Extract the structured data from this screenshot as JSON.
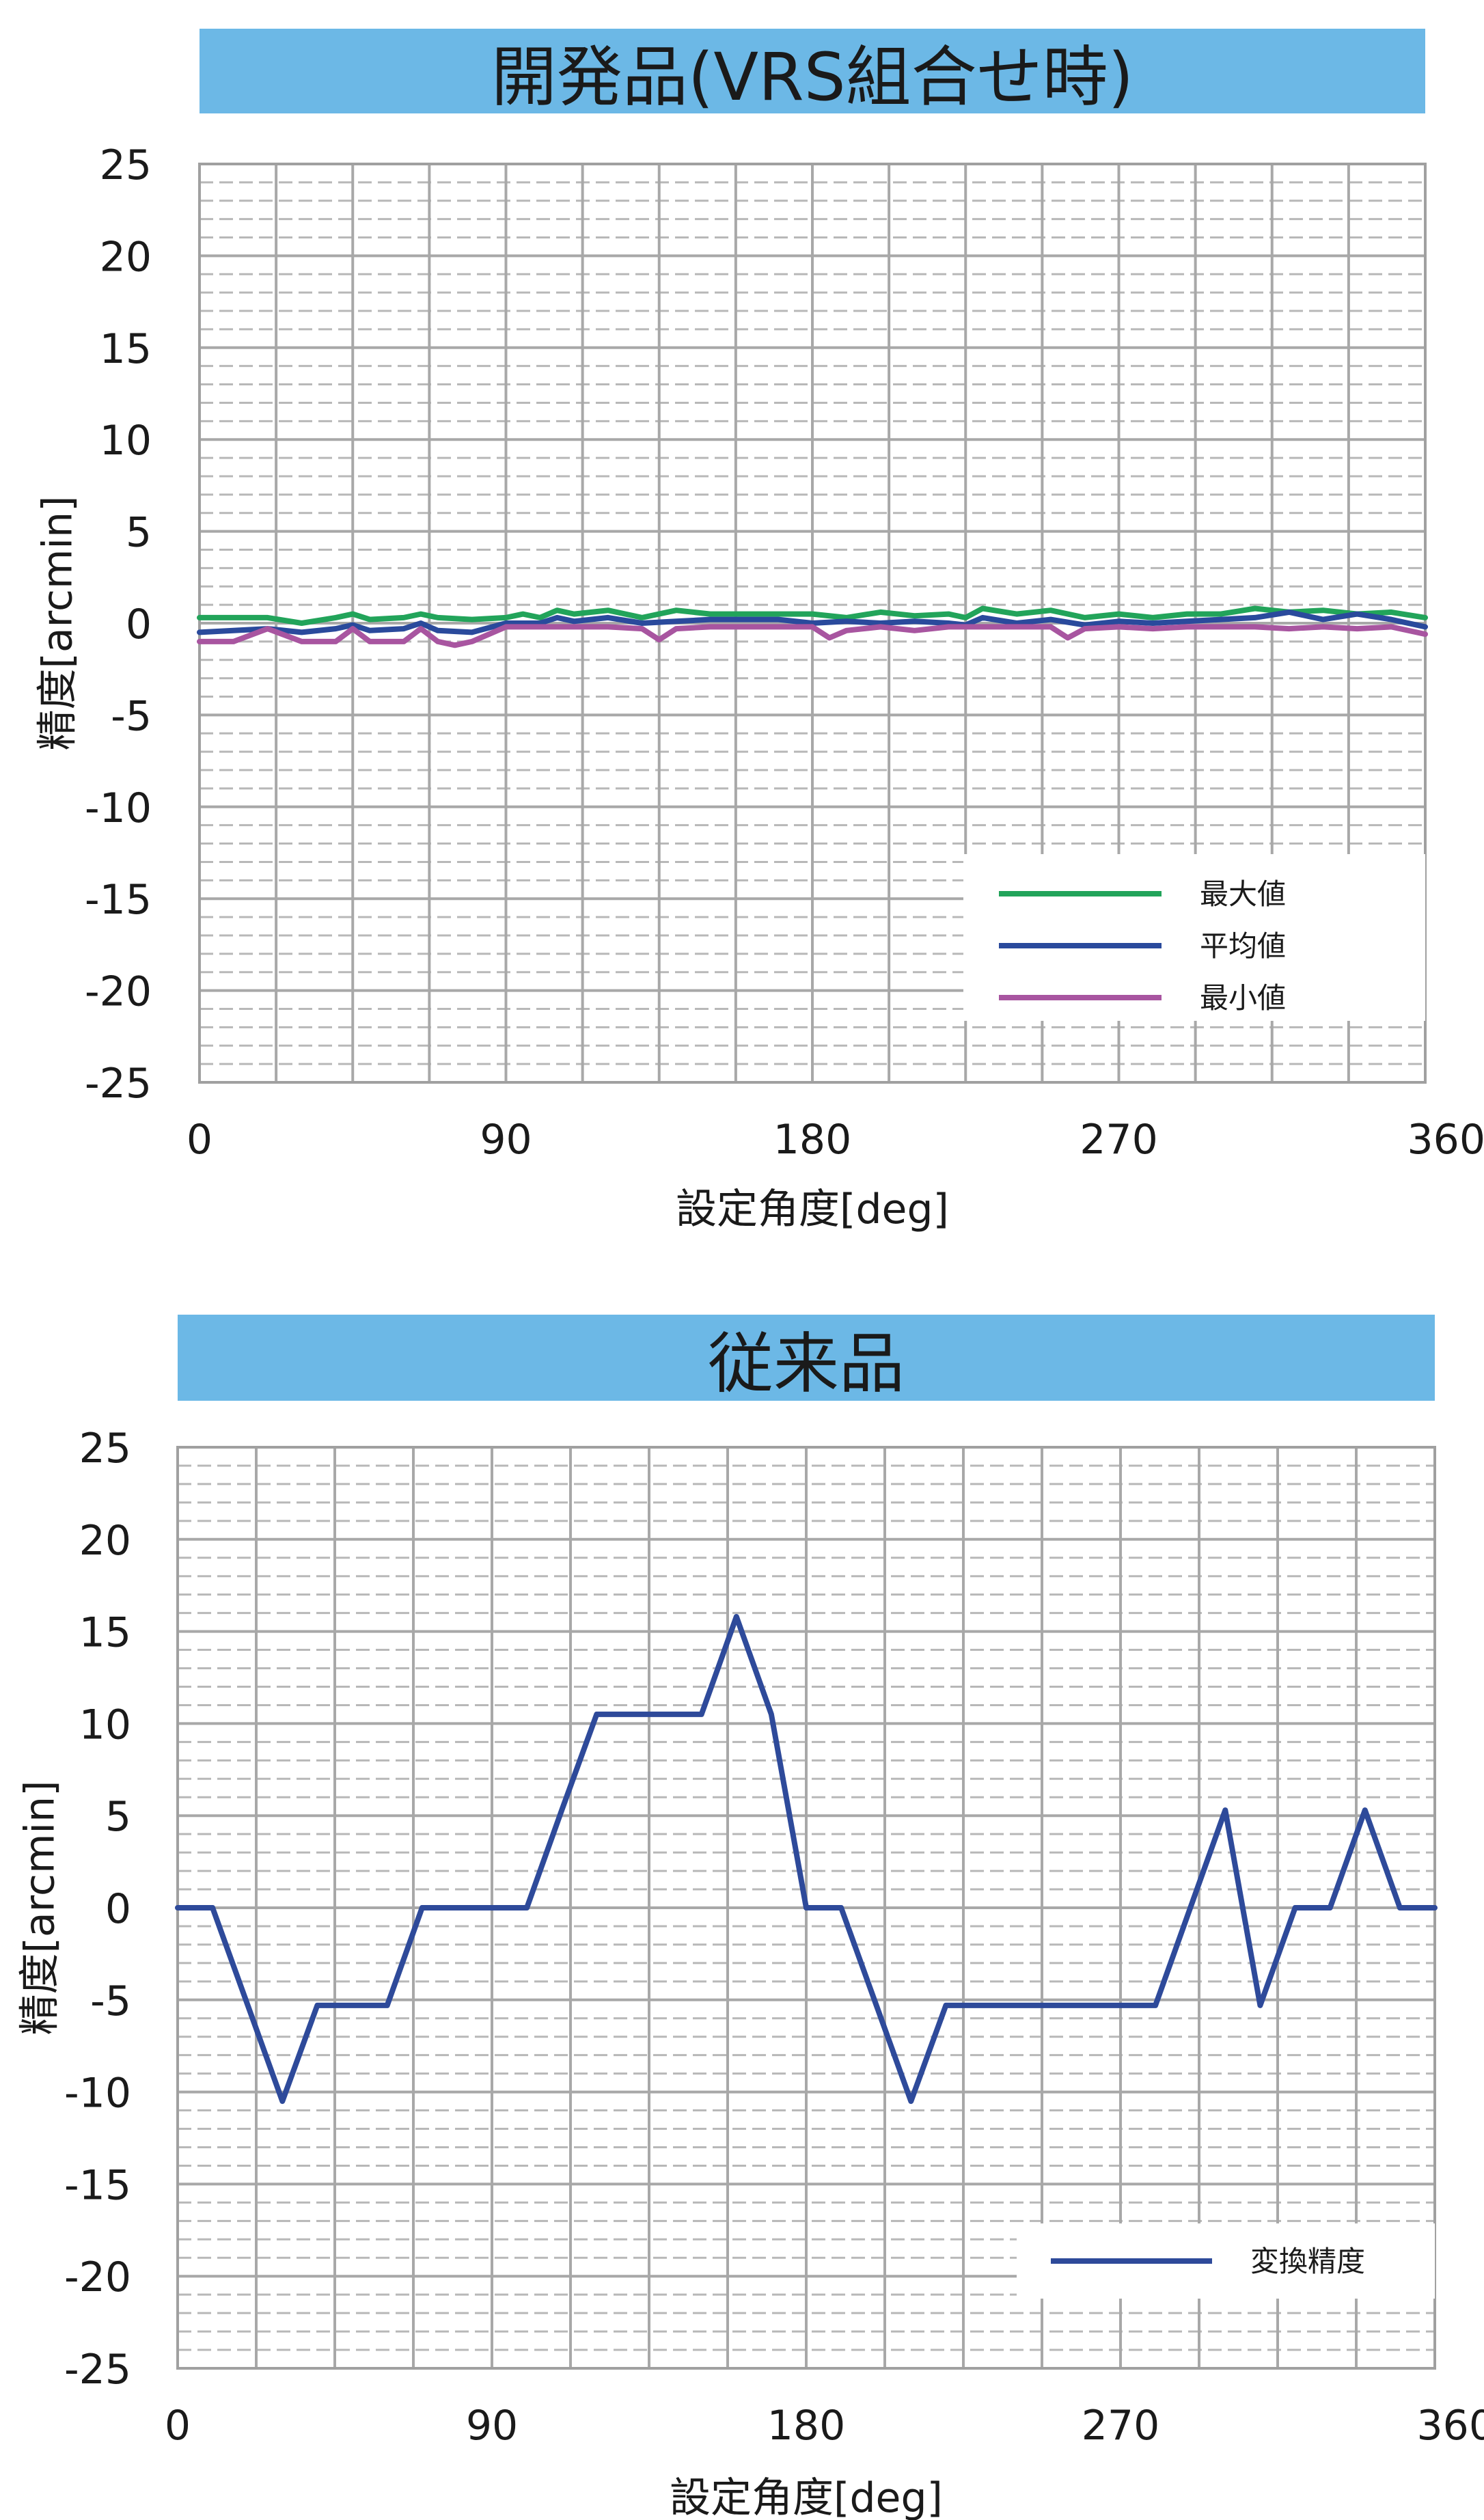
{
  "chart_data": [
    {
      "type": "line",
      "title": "開発品(VRS組合せ時)",
      "xlabel": "設定角度[deg]",
      "ylabel": "精度[arcmin]",
      "xlim": [
        0,
        360
      ],
      "ylim": [
        -25,
        25
      ],
      "xticks": [
        0,
        90,
        180,
        270,
        360
      ],
      "yticks": [
        25,
        20,
        15,
        10,
        5,
        0,
        -5,
        -10,
        -15,
        -20,
        -25
      ],
      "grid": true,
      "legend": "bottom-right",
      "series": [
        {
          "name": "最大値",
          "color": "#22a45a",
          "x": [
            0,
            10,
            20,
            30,
            40,
            45,
            50,
            60,
            65,
            70,
            80,
            90,
            95,
            100,
            105,
            110,
            120,
            130,
            140,
            150,
            160,
            170,
            180,
            190,
            200,
            210,
            220,
            225,
            230,
            240,
            250,
            260,
            270,
            280,
            290,
            300,
            310,
            320,
            330,
            340,
            350,
            360
          ],
          "y": [
            0.3,
            0.3,
            0.3,
            0.0,
            0.3,
            0.5,
            0.2,
            0.3,
            0.5,
            0.3,
            0.2,
            0.3,
            0.5,
            0.3,
            0.7,
            0.5,
            0.7,
            0.3,
            0.7,
            0.5,
            0.5,
            0.5,
            0.5,
            0.3,
            0.6,
            0.4,
            0.5,
            0.3,
            0.8,
            0.5,
            0.7,
            0.3,
            0.5,
            0.3,
            0.5,
            0.5,
            0.8,
            0.6,
            0.7,
            0.5,
            0.6,
            0.3
          ]
        },
        {
          "name": "平均値",
          "color": "#2a4a9c",
          "x": [
            0,
            10,
            20,
            30,
            40,
            45,
            50,
            60,
            65,
            70,
            80,
            90,
            95,
            100,
            105,
            110,
            120,
            130,
            140,
            150,
            160,
            170,
            180,
            190,
            200,
            210,
            220,
            225,
            230,
            240,
            250,
            260,
            270,
            280,
            290,
            300,
            310,
            320,
            330,
            340,
            350,
            360
          ],
          "y": [
            -0.5,
            -0.4,
            -0.3,
            -0.5,
            -0.3,
            -0.1,
            -0.4,
            -0.3,
            0.0,
            -0.4,
            -0.5,
            0.0,
            0.0,
            0.0,
            0.3,
            0.1,
            0.3,
            0.0,
            0.1,
            0.2,
            0.2,
            0.2,
            0.0,
            0.1,
            0.0,
            0.1,
            0.0,
            -0.1,
            0.3,
            0.0,
            0.2,
            -0.1,
            0.1,
            0.0,
            0.1,
            0.2,
            0.3,
            0.6,
            0.2,
            0.5,
            0.2,
            -0.2
          ]
        },
        {
          "name": "最小値",
          "color": "#a855a0",
          "x": [
            0,
            10,
            20,
            30,
            40,
            45,
            50,
            60,
            65,
            70,
            75,
            80,
            90,
            100,
            110,
            120,
            130,
            135,
            140,
            150,
            160,
            170,
            180,
            185,
            190,
            200,
            210,
            220,
            230,
            240,
            250,
            255,
            260,
            270,
            280,
            290,
            300,
            310,
            320,
            330,
            340,
            350,
            360
          ],
          "y": [
            -1.0,
            -1.0,
            -0.3,
            -1.0,
            -1.0,
            -0.3,
            -1.0,
            -1.0,
            -0.3,
            -1.0,
            -1.2,
            -1.0,
            -0.2,
            -0.2,
            -0.2,
            -0.2,
            -0.3,
            -0.9,
            -0.3,
            -0.2,
            -0.2,
            -0.2,
            -0.2,
            -0.8,
            -0.4,
            -0.2,
            -0.4,
            -0.2,
            -0.2,
            -0.2,
            -0.2,
            -0.8,
            -0.3,
            -0.2,
            -0.3,
            -0.2,
            -0.2,
            -0.2,
            -0.3,
            -0.2,
            -0.3,
            -0.2,
            -0.6
          ]
        }
      ]
    },
    {
      "type": "line",
      "title": "従来品",
      "xlabel": "設定角度[deg]",
      "ylabel": "精度[arcmin]",
      "xlim": [
        0,
        360
      ],
      "ylim": [
        -25,
        25
      ],
      "xticks": [
        0,
        90,
        180,
        270,
        360
      ],
      "yticks": [
        25,
        20,
        15,
        10,
        5,
        0,
        -5,
        -10,
        -15,
        -20,
        -25
      ],
      "grid": true,
      "legend": "bottom-right",
      "series": [
        {
          "name": "変換精度",
          "color": "#2e4a9a",
          "x": [
            0,
            10,
            30,
            40,
            60,
            70,
            90,
            100,
            110,
            120,
            150,
            160,
            170,
            180,
            190,
            210,
            220,
            280,
            300,
            310,
            320,
            330,
            340,
            350,
            360
          ],
          "y": [
            0,
            0,
            -10.5,
            -5.3,
            -5.3,
            0,
            0,
            0,
            5.3,
            10.5,
            10.5,
            15.8,
            10.5,
            0,
            0,
            -10.5,
            -5.3,
            -5.3,
            5.3,
            -5.3,
            0,
            0,
            5.3,
            0,
            0
          ]
        }
      ]
    }
  ]
}
